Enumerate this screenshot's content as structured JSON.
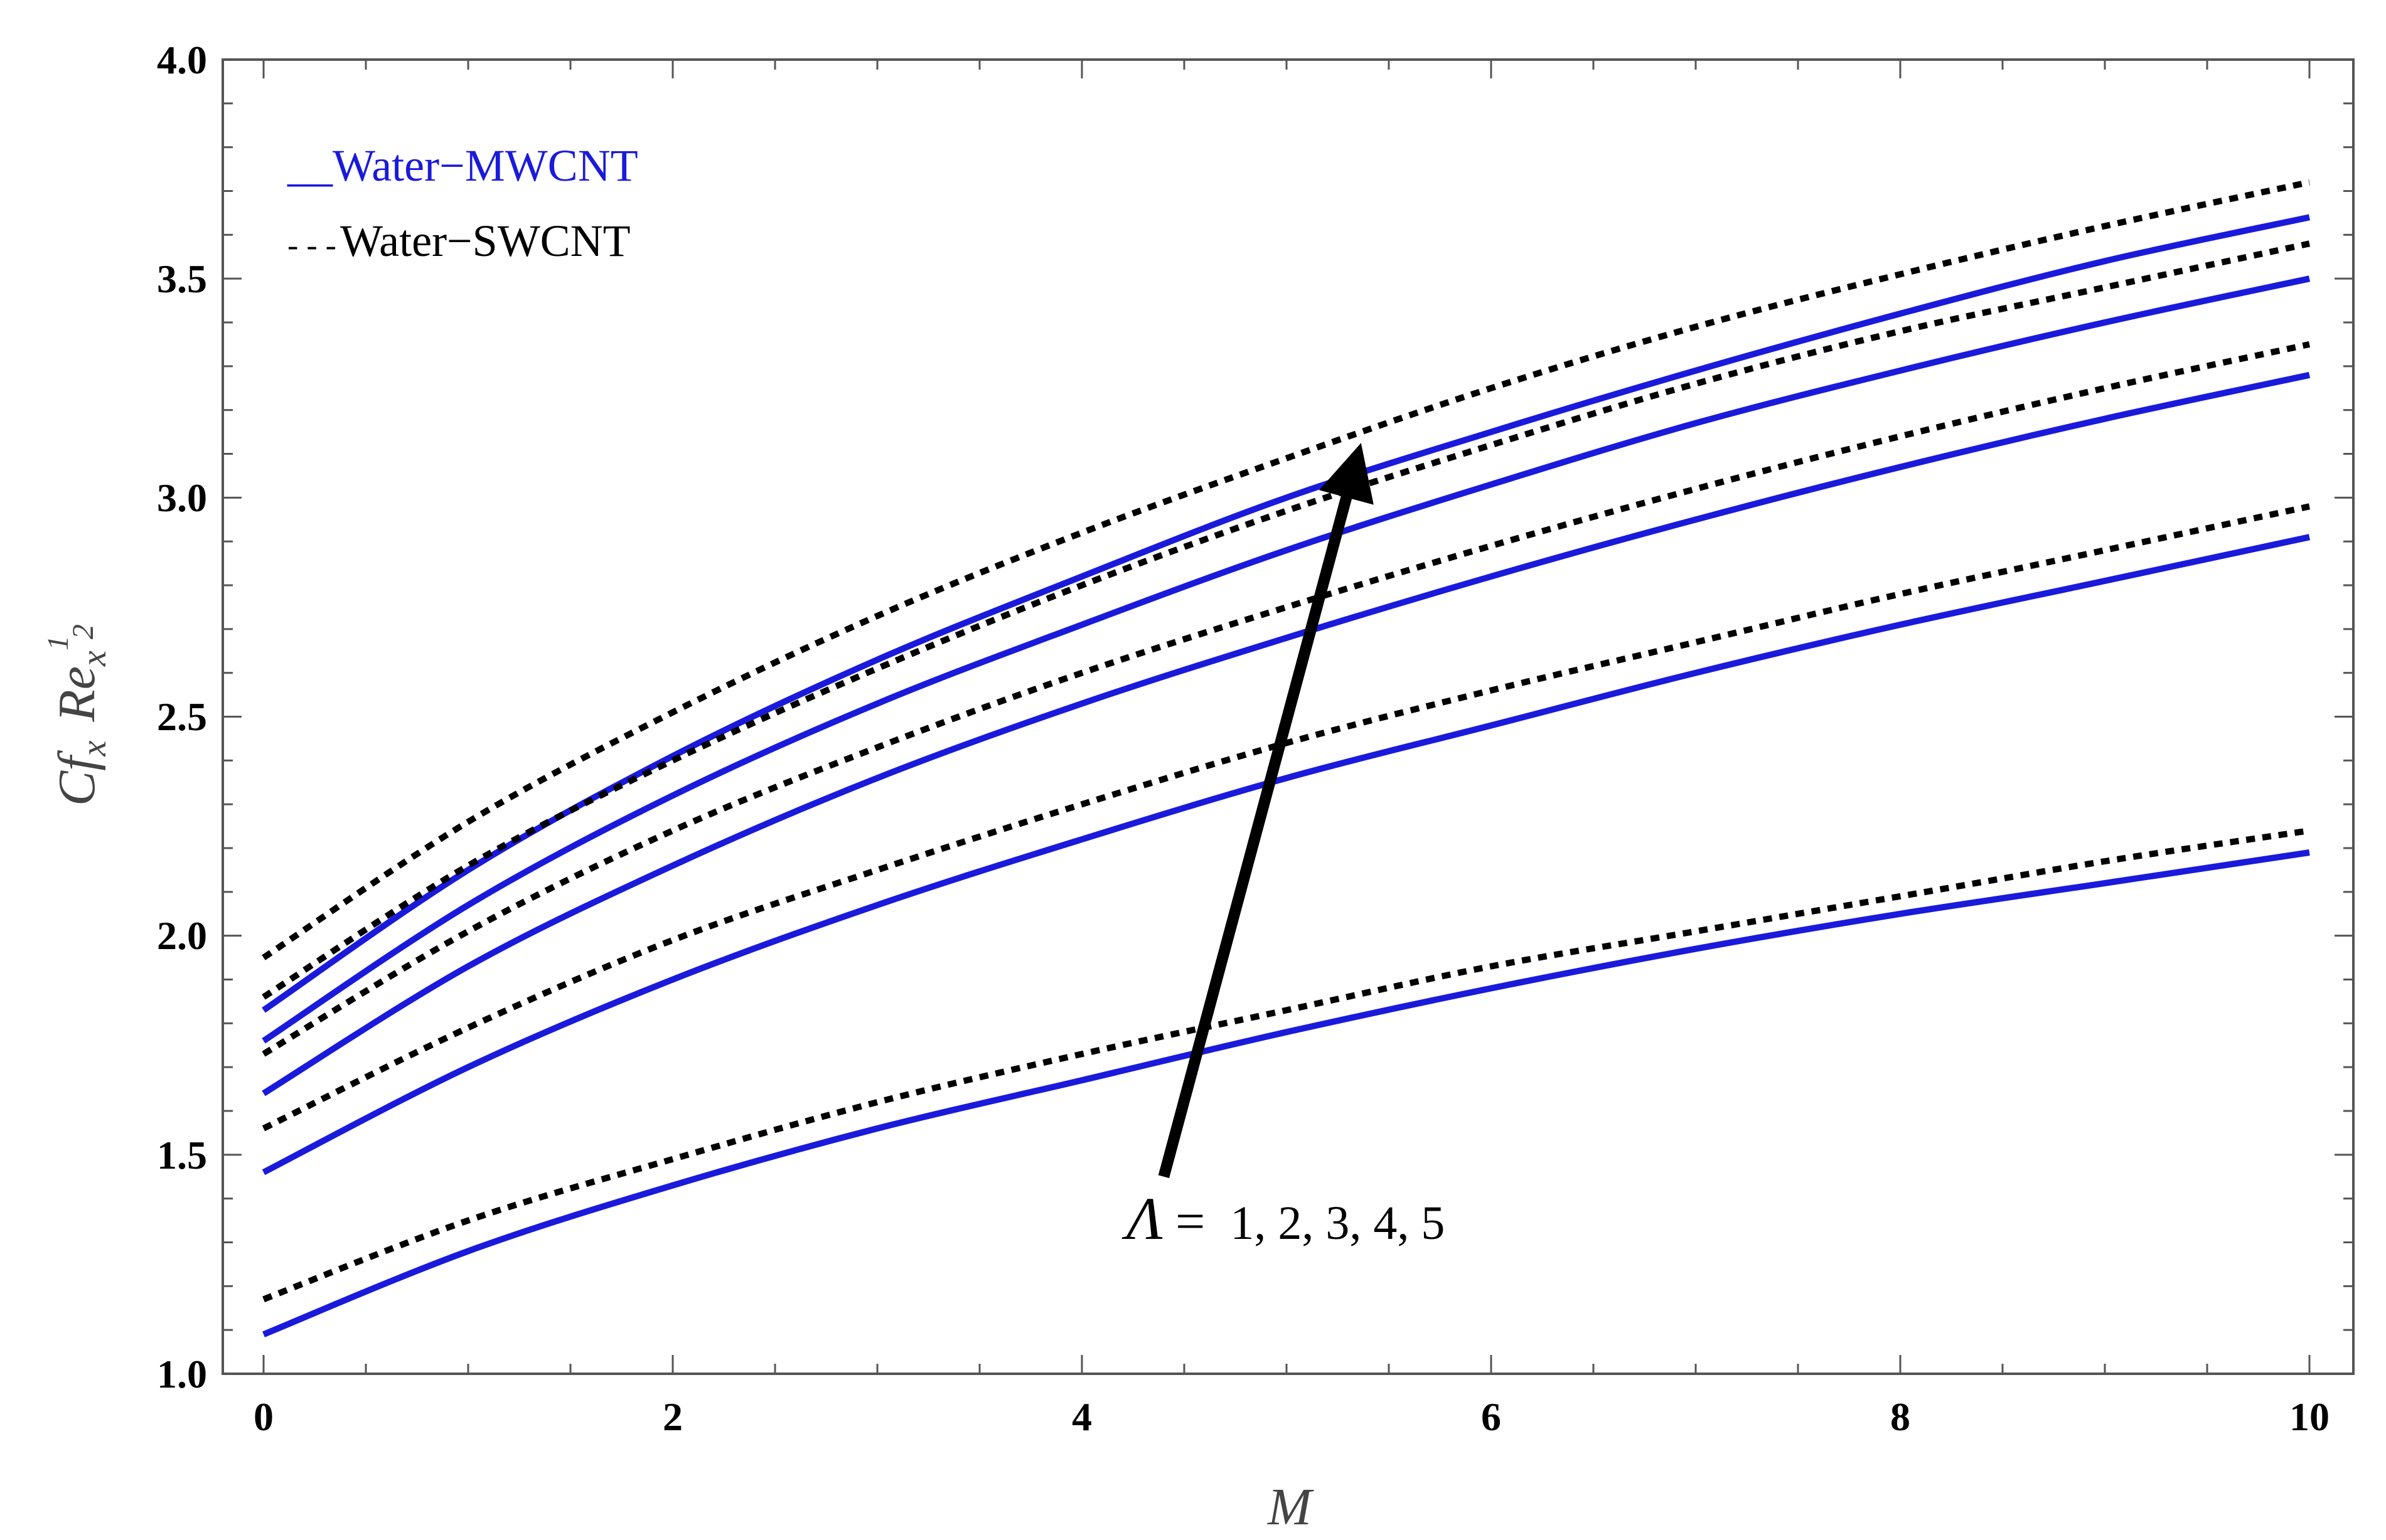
{
  "chart_data": {
    "type": "line",
    "title": "",
    "xlabel": "M",
    "ylabel": {
      "cf": "Cf",
      "cf_sub": "x",
      "re": "Re",
      "re_sub": "x",
      "exp_num": "1",
      "exp_den": "2"
    },
    "xlim": [
      0,
      10
    ],
    "ylim": [
      1.0,
      4.0
    ],
    "x_ticks": [
      "0",
      "2",
      "4",
      "6",
      "8",
      "10"
    ],
    "y_ticks": [
      "1.0",
      "1.5",
      "2.0",
      "2.5",
      "3.0",
      "3.5",
      "4.0"
    ],
    "grid": false,
    "x": [
      0,
      1,
      2,
      3,
      4,
      5,
      6,
      7,
      8,
      9,
      10
    ],
    "legend": {
      "placement": "top-left",
      "mwcnt_marker": "__",
      "mwcnt_label": "Water−MWCNT",
      "swcnt_marker": "- - -",
      "swcnt_label": "Water−SWCNT"
    },
    "annotation": {
      "symbol": "Λ",
      "equals": "=",
      "values": "1, 2,  3,  4, 5",
      "arrow_from": [
        4.4,
        1.45
      ],
      "arrow_to": [
        5.35,
        3.1
      ]
    },
    "series": [
      {
        "name": "Water−MWCNT Λ=1",
        "style": "solid",
        "color": "#1a1adc",
        "values": [
          1.09,
          1.28,
          1.43,
          1.56,
          1.67,
          1.78,
          1.88,
          1.97,
          2.05,
          2.12,
          2.19
        ]
      },
      {
        "name": "Water−MWCNT Λ=2",
        "style": "solid",
        "color": "#1a1adc",
        "values": [
          1.46,
          1.7,
          1.9,
          2.07,
          2.22,
          2.36,
          2.48,
          2.6,
          2.71,
          2.81,
          2.91
        ]
      },
      {
        "name": "Water−MWCNT Λ=3",
        "style": "solid",
        "color": "#1a1adc",
        "values": [
          1.64,
          1.93,
          2.16,
          2.36,
          2.53,
          2.68,
          2.82,
          2.95,
          3.07,
          3.18,
          3.28
        ]
      },
      {
        "name": "Water−MWCNT Λ=4",
        "style": "solid",
        "color": "#1a1adc",
        "values": [
          1.76,
          2.07,
          2.32,
          2.53,
          2.71,
          2.88,
          3.03,
          3.17,
          3.29,
          3.4,
          3.5
        ]
      },
      {
        "name": "Water−MWCNT Λ=5",
        "style": "solid",
        "color": "#1a1adc",
        "values": [
          1.83,
          2.15,
          2.41,
          2.63,
          2.82,
          3.0,
          3.15,
          3.29,
          3.42,
          3.54,
          3.64
        ]
      },
      {
        "name": "Water−SWCNT Λ=1",
        "style": "dashed",
        "color": "#000000",
        "values": [
          1.17,
          1.35,
          1.49,
          1.62,
          1.73,
          1.83,
          1.93,
          2.01,
          2.09,
          2.17,
          2.24
        ]
      },
      {
        "name": "Water−SWCNT Λ=2",
        "style": "dashed",
        "color": "#000000",
        "values": [
          1.56,
          1.79,
          1.99,
          2.15,
          2.3,
          2.44,
          2.56,
          2.67,
          2.78,
          2.88,
          2.98
        ]
      },
      {
        "name": "Water−SWCNT Λ=3",
        "style": "dashed",
        "color": "#000000",
        "values": [
          1.73,
          2.01,
          2.24,
          2.43,
          2.6,
          2.75,
          2.89,
          3.02,
          3.14,
          3.25,
          3.35
        ]
      },
      {
        "name": "Water−SWCNT Λ=4",
        "style": "dashed",
        "color": "#000000",
        "values": [
          1.86,
          2.16,
          2.4,
          2.61,
          2.8,
          2.97,
          3.12,
          3.26,
          3.38,
          3.48,
          3.58
        ]
      },
      {
        "name": "Water−SWCNT Λ=5",
        "style": "dashed",
        "color": "#000000",
        "values": [
          1.95,
          2.26,
          2.51,
          2.73,
          2.92,
          3.09,
          3.25,
          3.39,
          3.51,
          3.62,
          3.72
        ]
      }
    ]
  }
}
